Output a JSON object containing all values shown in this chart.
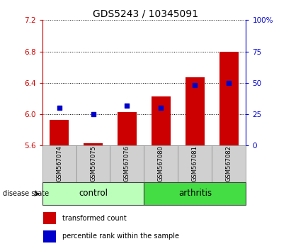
{
  "title": "GDS5243 / 10345091",
  "samples": [
    "GSM567074",
    "GSM567075",
    "GSM567076",
    "GSM567080",
    "GSM567081",
    "GSM567082"
  ],
  "bar_values": [
    5.93,
    5.63,
    6.03,
    6.23,
    6.47,
    6.8
  ],
  "percentile_values": [
    30,
    25,
    32,
    30,
    48,
    50
  ],
  "ylim_left": [
    5.6,
    7.2
  ],
  "ylim_right": [
    0,
    100
  ],
  "yticks_left": [
    5.6,
    6.0,
    6.4,
    6.8,
    7.2
  ],
  "yticks_right": [
    0,
    25,
    50,
    75,
    100
  ],
  "bar_color": "#cc0000",
  "dot_color": "#0000cc",
  "bar_width": 0.55,
  "group_colors": [
    "#bbffbb",
    "#44dd44"
  ],
  "group_labels": [
    "control",
    "arthritis"
  ],
  "group_ranges": [
    [
      0,
      2
    ],
    [
      3,
      5
    ]
  ],
  "group_label_prefix": "disease state",
  "legend_bar_label": "transformed count",
  "legend_dot_label": "percentile rank within the sample",
  "title_fontsize": 10,
  "tick_fontsize": 7.5,
  "sample_fontsize": 6,
  "group_fontsize": 8.5,
  "legend_fontsize": 7,
  "background_color": "#ffffff",
  "sample_box_color": "#d0d0d0",
  "left_tick_color": "#cc0000",
  "right_tick_color": "#0000cc"
}
